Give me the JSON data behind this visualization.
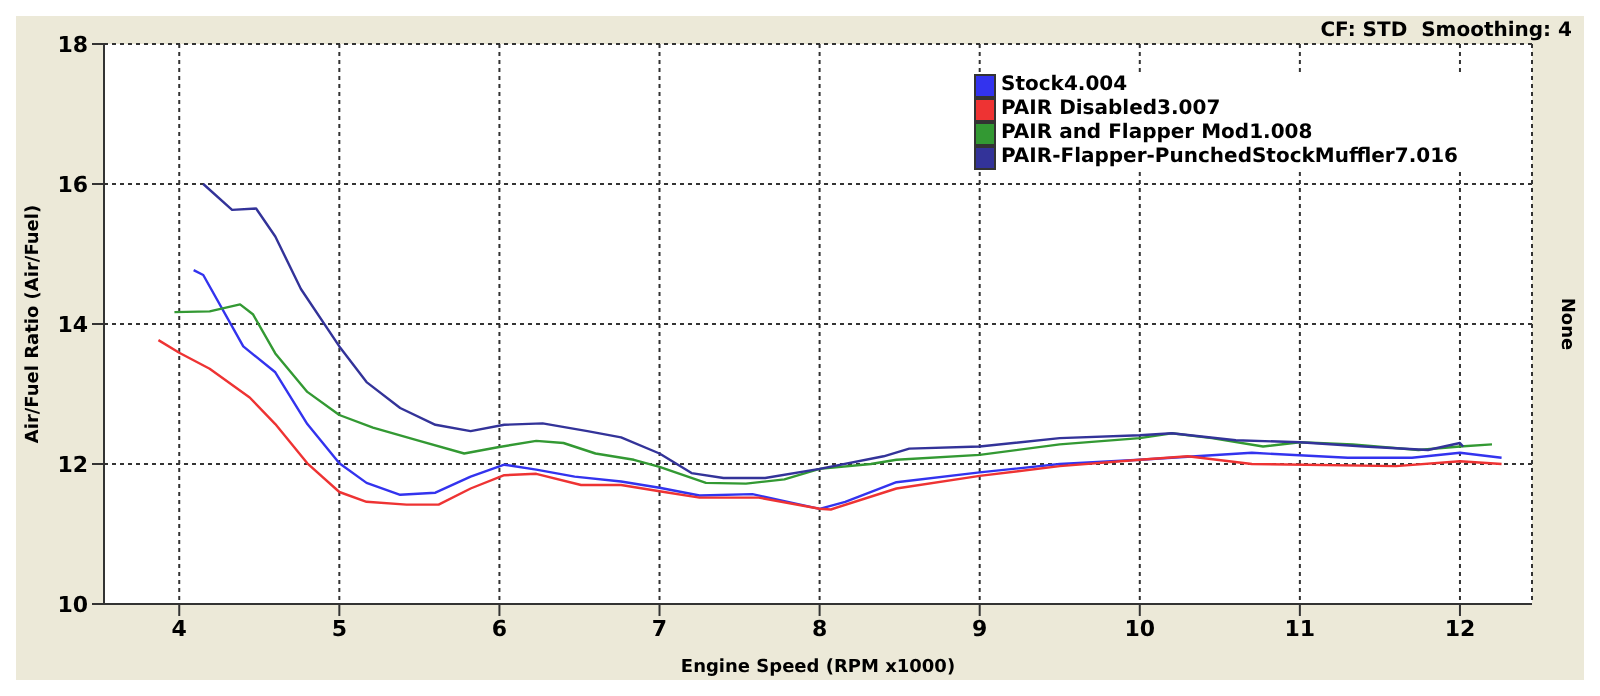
{
  "chart_data": {
    "type": "line",
    "xlabel": "Engine Speed (RPM x1000)",
    "ylabel": "Air/Fuel Ratio (Air/Fuel)",
    "y2label": "None",
    "annotations": [
      "CF: STD  Smoothing: 4"
    ],
    "xlim": [
      3.53,
      12.45
    ],
    "xticks": [
      4,
      5,
      6,
      7,
      8,
      9,
      10,
      11,
      12
    ],
    "ylim": [
      10,
      18
    ],
    "yticks": [
      10,
      12,
      14,
      16,
      18
    ],
    "grid": true,
    "legend": "top right",
    "marker": "none",
    "line_style": "solid",
    "series": [
      {
        "name": "Stock4.004",
        "color": "#3333ee",
        "x": [
          4.09,
          4.15,
          4.4,
          4.6,
          4.8,
          5.0,
          5.17,
          5.38,
          5.6,
          5.82,
          6.03,
          6.23,
          6.47,
          6.76,
          7.0,
          7.25,
          7.58,
          8.0,
          8.16,
          8.48,
          9.0,
          9.5,
          10.0,
          10.7,
          11.3,
          11.7,
          12.0,
          12.26
        ],
        "values": [
          14.77,
          14.7,
          13.68,
          13.31,
          12.57,
          12.01,
          11.73,
          11.56,
          11.59,
          11.82,
          11.99,
          11.92,
          11.82,
          11.75,
          11.66,
          11.55,
          11.57,
          11.36,
          11.46,
          11.74,
          11.88,
          12.0,
          12.06,
          12.16,
          12.09,
          12.09,
          12.16,
          12.09
        ]
      },
      {
        "name": "PAIR Disabled3.007",
        "color": "#ee3333",
        "x": [
          3.87,
          4.0,
          4.19,
          4.44,
          4.6,
          4.8,
          5.0,
          5.17,
          5.42,
          5.62,
          5.82,
          6.03,
          6.23,
          6.51,
          6.76,
          7.0,
          7.25,
          7.62,
          8.0,
          8.07,
          8.48,
          9.0,
          9.5,
          10.0,
          10.3,
          10.7,
          11.6,
          12.0,
          12.26
        ],
        "values": [
          13.77,
          13.59,
          13.36,
          12.95,
          12.57,
          12.01,
          11.6,
          11.46,
          11.42,
          11.42,
          11.65,
          11.84,
          11.86,
          11.7,
          11.7,
          11.61,
          11.52,
          11.52,
          11.36,
          11.35,
          11.65,
          11.83,
          11.97,
          12.06,
          12.11,
          12.0,
          11.97,
          12.04,
          12.0
        ]
      },
      {
        "name": "PAIR and Flapper Mod1.008",
        "color": "#339933",
        "x": [
          3.97,
          4.19,
          4.38,
          4.46,
          4.6,
          4.8,
          5.0,
          5.21,
          5.5,
          5.78,
          5.99,
          6.23,
          6.4,
          6.6,
          6.84,
          7.0,
          7.29,
          7.54,
          7.78,
          8.0,
          8.32,
          8.48,
          9.0,
          9.5,
          10.0,
          10.2,
          10.45,
          10.77,
          11.0,
          11.33,
          11.74,
          12.0,
          12.2
        ],
        "values": [
          14.17,
          14.18,
          14.28,
          14.14,
          13.58,
          13.03,
          12.7,
          12.52,
          12.33,
          12.15,
          12.24,
          12.33,
          12.3,
          12.15,
          12.06,
          11.96,
          11.73,
          11.72,
          11.78,
          11.93,
          12.0,
          12.06,
          12.13,
          12.28,
          12.37,
          12.44,
          12.37,
          12.25,
          12.31,
          12.28,
          12.2,
          12.25,
          12.28
        ]
      },
      {
        "name": "PAIR-Flapper-PunchedStockMuffler7.016",
        "color": "#333399",
        "x": [
          4.15,
          4.33,
          4.48,
          4.6,
          4.76,
          5.0,
          5.17,
          5.38,
          5.6,
          5.82,
          6.03,
          6.27,
          6.55,
          6.76,
          7.0,
          7.2,
          7.4,
          7.66,
          8.0,
          8.4,
          8.56,
          9.0,
          9.5,
          10.0,
          10.2,
          10.6,
          11.0,
          11.4,
          11.8,
          12.0,
          12.02
        ],
        "values": [
          16.0,
          15.63,
          15.65,
          15.25,
          14.5,
          13.68,
          13.17,
          12.8,
          12.56,
          12.47,
          12.56,
          12.58,
          12.47,
          12.38,
          12.15,
          11.87,
          11.8,
          11.8,
          11.93,
          12.11,
          12.22,
          12.25,
          12.37,
          12.41,
          12.44,
          12.34,
          12.31,
          12.25,
          12.2,
          12.3,
          12.25
        ]
      }
    ]
  }
}
